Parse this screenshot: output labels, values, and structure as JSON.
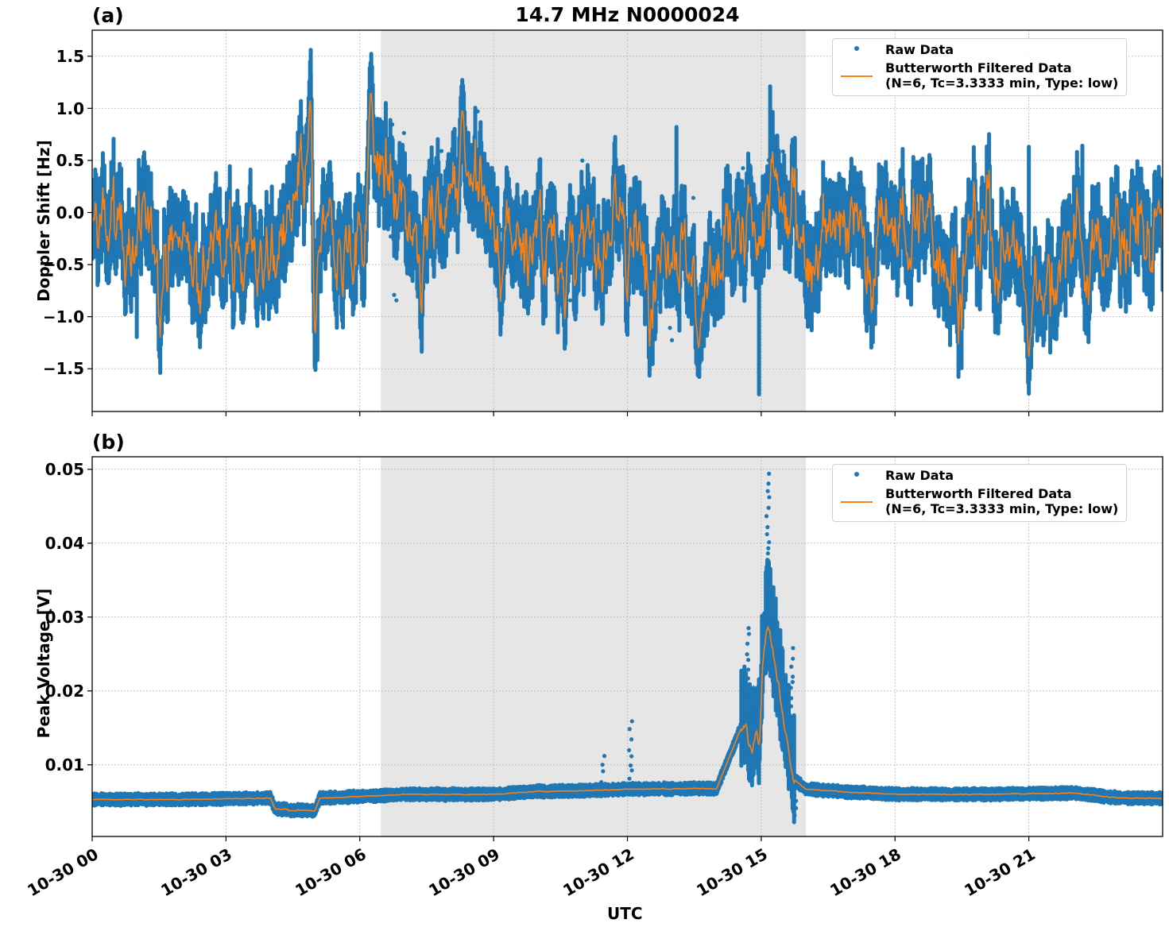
{
  "figure": {
    "title": "14.7 MHz N0000024",
    "xlabel": "UTC"
  },
  "panels": [
    {
      "label": "(a)",
      "ylabel": "Doppler Shift [Hz]",
      "yticks": [
        "1.5",
        "1.0",
        "0.5",
        "0.0",
        "−0.5",
        "−1.0",
        "−1.5"
      ],
      "legend": {
        "raw": "Raw Data",
        "filtered_line1": "Butterworth Filtered Data",
        "filtered_line2": "(N=6, Tc=3.3333 min, Type: low)"
      }
    },
    {
      "label": "(b)",
      "ylabel": "Peak Voltage [V]",
      "yticks": [
        "0.05",
        "0.04",
        "0.03",
        "0.02",
        "0.01"
      ],
      "legend": {
        "raw": "Raw Data",
        "filtered_line1": "Butterworth Filtered Data",
        "filtered_line2": "(N=6, Tc=3.3333 min, Type: low)"
      }
    }
  ],
  "xticks": [
    "10-30 00",
    "10-30 03",
    "10-30 06",
    "10-30 09",
    "10-30 12",
    "10-30 15",
    "10-30 18",
    "10-30 21"
  ],
  "colors": {
    "raw": "#1f77b4",
    "filtered": "#ff7f0e",
    "shade": "#e6e6e6",
    "grid": "#b0b0b0"
  },
  "chart_data": [
    {
      "type": "scatter",
      "title": "14.7 MHz N0000024",
      "panel": "(a)",
      "xlabel": "UTC",
      "ylabel": "Doppler Shift [Hz]",
      "x_range_hours": [
        0,
        24
      ],
      "xticks": [
        "10-30 00",
        "10-30 03",
        "10-30 06",
        "10-30 09",
        "10-30 12",
        "10-30 15",
        "10-30 18",
        "10-30 21"
      ],
      "ylim": [
        -1.91,
        1.75
      ],
      "yticks": [
        -1.5,
        -1.0,
        -0.5,
        0.0,
        0.5,
        1.0,
        1.5
      ],
      "grid": true,
      "legend_position": "upper right",
      "shaded_region_hours": [
        6.47,
        16.0
      ],
      "series": [
        {
          "name": "Raw Data",
          "style": "dots",
          "baseline_hours": [
            0,
            1,
            2,
            3,
            4,
            4.8,
            5.0,
            5.2,
            6.0,
            6.25,
            7,
            8,
            8.3,
            9,
            10,
            11,
            12,
            13,
            13.6,
            14,
            15,
            15.3,
            16,
            17,
            18,
            19,
            20,
            21,
            21.05,
            22,
            23,
            24
          ],
          "center_values": [
            -0.3,
            -0.2,
            -0.3,
            -0.25,
            -0.25,
            0.0,
            0.2,
            -0.6,
            -0.1,
            0.5,
            0.0,
            0.0,
            0.5,
            -0.2,
            -0.2,
            -0.3,
            -0.3,
            -0.2,
            -0.7,
            -0.5,
            -0.2,
            0.2,
            -0.2,
            -0.1,
            -0.2,
            -0.2,
            -0.3,
            -0.3,
            -0.8,
            -0.3,
            -0.3,
            -0.3
          ],
          "extremes": [
            {
              "hour": 4.9,
              "value": 1.58
            },
            {
              "hour": 5.05,
              "value": -1.42
            },
            {
              "hour": 6.25,
              "value": 1.4
            },
            {
              "hour": 8.3,
              "value": 1.22
            },
            {
              "hour": 13.1,
              "value": 0.84
            },
            {
              "hour": 13.6,
              "value": -1.57
            },
            {
              "hour": 14.95,
              "value": -1.75
            },
            {
              "hour": 15.2,
              "value": 1.23
            },
            {
              "hour": 21.0,
              "value": -1.6
            },
            {
              "hour": 21.0,
              "value": 0.65
            },
            {
              "hour": 22.2,
              "value": 0.66
            },
            {
              "hour": 1.0,
              "value": -1.2
            }
          ]
        },
        {
          "name": "Butterworth Filtered Data (N=6, Tc=3.3333 min, Type: low)",
          "style": "line",
          "extremes": [
            {
              "hour": 4.9,
              "value": 1.2
            },
            {
              "hour": 5.0,
              "value": -1.25
            },
            {
              "hour": 6.25,
              "value": 1.2
            },
            {
              "hour": 8.3,
              "value": 1.0
            },
            {
              "hour": 13.6,
              "value": -1.3
            },
            {
              "hour": 21.0,
              "value": -1.45
            }
          ]
        }
      ]
    },
    {
      "type": "scatter",
      "panel": "(b)",
      "xlabel": "UTC",
      "ylabel": "Peak Voltage [V]",
      "x_range_hours": [
        0,
        24
      ],
      "xticks": [
        "10-30 00",
        "10-30 03",
        "10-30 06",
        "10-30 09",
        "10-30 12",
        "10-30 15",
        "10-30 18",
        "10-30 21"
      ],
      "ylim": [
        0.0003,
        0.0517
      ],
      "yticks": [
        0.01,
        0.02,
        0.03,
        0.04,
        0.05
      ],
      "grid": true,
      "legend_position": "upper right",
      "shaded_region_hours": [
        6.47,
        16.0
      ],
      "series": [
        {
          "name": "Raw Data",
          "style": "dots",
          "baseline_hours": [
            0,
            2,
            4,
            4.1,
            5.0,
            5.1,
            6,
            7,
            9,
            10,
            11,
            12,
            14,
            14.55,
            14.8,
            15.15,
            15.6,
            15.75,
            16,
            17,
            18,
            20,
            22,
            23,
            24
          ],
          "baseline_values": [
            0.0053,
            0.0053,
            0.0055,
            0.004,
            0.0038,
            0.0055,
            0.0057,
            0.006,
            0.006,
            0.0064,
            0.0065,
            0.0067,
            0.0068,
            0.015,
            0.012,
            0.03,
            0.012,
            0.008,
            0.0067,
            0.0063,
            0.006,
            0.006,
            0.0062,
            0.0055,
            0.0055
          ],
          "extremes": [
            {
              "hour": 11.45,
              "value": 0.0112
            },
            {
              "hour": 12.07,
              "value": 0.0159
            },
            {
              "hour": 14.7,
              "value": 0.0285
            },
            {
              "hour": 15.15,
              "value": 0.0494
            },
            {
              "hour": 15.7,
              "value": 0.0258
            },
            {
              "hour": 15.75,
              "value": 0.003
            }
          ]
        },
        {
          "name": "Butterworth Filtered Data (N=6, Tc=3.3333 min, Type: low)",
          "style": "line",
          "extremes": [
            {
              "hour": 14.65,
              "value": 0.0163
            },
            {
              "hour": 14.95,
              "value": 0.01
            },
            {
              "hour": 15.15,
              "value": 0.0281
            },
            {
              "hour": 15.55,
              "value": 0.0148
            },
            {
              "hour": 4.5,
              "value": 0.0037
            }
          ]
        }
      ]
    }
  ]
}
